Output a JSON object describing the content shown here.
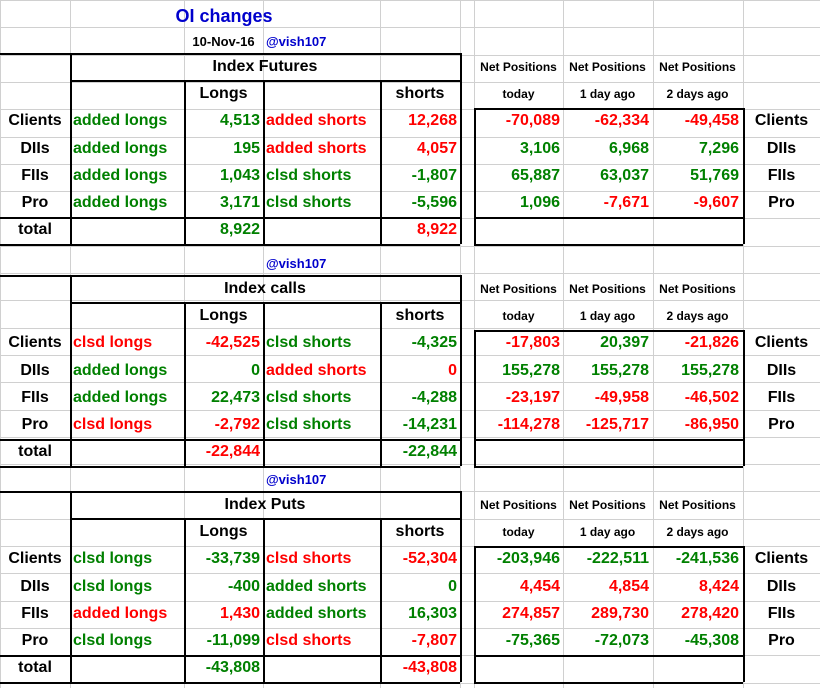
{
  "header": {
    "title": "OI changes",
    "date": "10-Nov-16",
    "handle": "@vish107"
  },
  "np_headers": {
    "title": "Net Positions",
    "cols": [
      "today",
      "1 day ago",
      "2 days ago"
    ]
  },
  "participants": [
    "Clients",
    "DIIs",
    "FIIs",
    "Pro"
  ],
  "total_label": "total",
  "longs_header": "Longs",
  "shorts_header": "shorts",
  "colors": {
    "positive": "#008000",
    "negative": "#ff0000",
    "title": "#0000cc"
  },
  "sections": [
    {
      "title": "Index Futures",
      "rows": [
        {
          "long_label": "added longs",
          "long_color": "green",
          "long_value": "4,513",
          "long_value_color": "green",
          "short_label": "added shorts",
          "short_color": "red",
          "short_value": "12,268",
          "short_value_color": "red",
          "np": [
            "-70,089",
            "-62,334",
            "-49,458"
          ],
          "np_colors": [
            "red",
            "red",
            "red"
          ]
        },
        {
          "long_label": "added longs",
          "long_color": "green",
          "long_value": "195",
          "long_value_color": "green",
          "short_label": "added shorts",
          "short_color": "red",
          "short_value": "4,057",
          "short_value_color": "red",
          "np": [
            "3,106",
            "6,968",
            "7,296"
          ],
          "np_colors": [
            "green",
            "green",
            "green"
          ]
        },
        {
          "long_label": "added longs",
          "long_color": "green",
          "long_value": "1,043",
          "long_value_color": "green",
          "short_label": "clsd shorts",
          "short_color": "green",
          "short_value": "-1,807",
          "short_value_color": "green",
          "np": [
            "65,887",
            "63,037",
            "51,769"
          ],
          "np_colors": [
            "green",
            "green",
            "green"
          ]
        },
        {
          "long_label": "added longs",
          "long_color": "green",
          "long_value": "3,171",
          "long_value_color": "green",
          "short_label": "clsd shorts",
          "short_color": "green",
          "short_value": "-5,596",
          "short_value_color": "green",
          "np": [
            "1,096",
            "-7,671",
            "-9,607"
          ],
          "np_colors": [
            "green",
            "red",
            "red"
          ]
        }
      ],
      "total_longs": "8,922",
      "total_longs_color": "green",
      "total_shorts": "8,922",
      "total_shorts_color": "red"
    },
    {
      "title": "Index calls",
      "rows": [
        {
          "long_label": "clsd longs",
          "long_color": "red",
          "long_value": "-42,525",
          "long_value_color": "red",
          "short_label": "clsd shorts",
          "short_color": "green",
          "short_value": "-4,325",
          "short_value_color": "green",
          "np": [
            "-17,803",
            "20,397",
            "-21,826"
          ],
          "np_colors": [
            "red",
            "green",
            "red"
          ]
        },
        {
          "long_label": "added longs",
          "long_color": "green",
          "long_value": "0",
          "long_value_color": "green",
          "short_label": "added shorts",
          "short_color": "red",
          "short_value": "0",
          "short_value_color": "red",
          "np": [
            "155,278",
            "155,278",
            "155,278"
          ],
          "np_colors": [
            "green",
            "green",
            "green"
          ]
        },
        {
          "long_label": "added longs",
          "long_color": "green",
          "long_value": "22,473",
          "long_value_color": "green",
          "short_label": "clsd shorts",
          "short_color": "green",
          "short_value": "-4,288",
          "short_value_color": "green",
          "np": [
            "-23,197",
            "-49,958",
            "-46,502"
          ],
          "np_colors": [
            "red",
            "red",
            "red"
          ]
        },
        {
          "long_label": "clsd longs",
          "long_color": "red",
          "long_value": "-2,792",
          "long_value_color": "red",
          "short_label": "clsd shorts",
          "short_color": "green",
          "short_value": "-14,231",
          "short_value_color": "green",
          "np": [
            "-114,278",
            "-125,717",
            "-86,950"
          ],
          "np_colors": [
            "red",
            "red",
            "red"
          ]
        }
      ],
      "total_longs": "-22,844",
      "total_longs_color": "red",
      "total_shorts": "-22,844",
      "total_shorts_color": "green"
    },
    {
      "title": "Index Puts",
      "rows": [
        {
          "long_label": "clsd longs",
          "long_color": "green",
          "long_value": "-33,739",
          "long_value_color": "green",
          "short_label": "clsd shorts",
          "short_color": "red",
          "short_value": "-52,304",
          "short_value_color": "red",
          "np": [
            "-203,946",
            "-222,511",
            "-241,536"
          ],
          "np_colors": [
            "green",
            "green",
            "green"
          ]
        },
        {
          "long_label": "clsd longs",
          "long_color": "green",
          "long_value": "-400",
          "long_value_color": "green",
          "short_label": "added shorts",
          "short_color": "green",
          "short_value": "0",
          "short_value_color": "green",
          "np": [
            "4,454",
            "4,854",
            "8,424"
          ],
          "np_colors": [
            "red",
            "red",
            "red"
          ]
        },
        {
          "long_label": "added longs",
          "long_color": "red",
          "long_value": "1,430",
          "long_value_color": "red",
          "short_label": "added shorts",
          "short_color": "green",
          "short_value": "16,303",
          "short_value_color": "green",
          "np": [
            "274,857",
            "289,730",
            "278,420"
          ],
          "np_colors": [
            "red",
            "red",
            "red"
          ]
        },
        {
          "long_label": "clsd longs",
          "long_color": "green",
          "long_value": "-11,099",
          "long_value_color": "green",
          "short_label": "clsd shorts",
          "short_color": "red",
          "short_value": "-7,807",
          "short_value_color": "red",
          "np": [
            "-75,365",
            "-72,073",
            "-45,308"
          ],
          "np_colors": [
            "green",
            "green",
            "green"
          ]
        }
      ],
      "total_longs": "-43,808",
      "total_longs_color": "green",
      "total_shorts": "-43,808",
      "total_shorts_color": "red"
    }
  ]
}
